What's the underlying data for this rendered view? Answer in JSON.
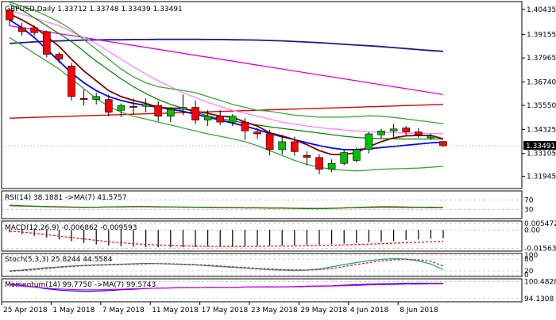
{
  "chart_data": {
    "type": "candlestick",
    "header": "GBPUSD,Daily  1.33712 1.33748 1.33439 1.33491",
    "current_price_label": "1.33491",
    "price_ticks": [
      "1.40435",
      "1.39155",
      "1.37965",
      "1.36740",
      "1.35550",
      "1.34325",
      "1.33491",
      "1.33105",
      "1.31945"
    ],
    "x_tick_labels": [
      "25 Apr 2018",
      "1 May 2018",
      "7 May 2018",
      "11 May 2018",
      "17 May 2018",
      "23 May 2018",
      "29 May 2018",
      "4 Jun 2018",
      "8 Jun 2018"
    ],
    "ylim": [
      1.314,
      1.4075
    ],
    "colors": {
      "bull": "#00c000",
      "bear": "#ff0000",
      "sma_short": "#0000ff",
      "sma_long": "#1a1a8c",
      "ema_red": "#dd0000",
      "ema_magenta": "#e000e0",
      "pink": "#ff80ff",
      "green": "#008800",
      "maroon": "#800000",
      "bollinger": "#33aa33",
      "price_bg": "#000000"
    },
    "candles": [
      {
        "o": 1.404,
        "h": 1.4045,
        "l": 1.396,
        "c": 1.399
      },
      {
        "o": 1.395,
        "h": 1.3975,
        "l": 1.391,
        "c": 1.393
      },
      {
        "o": 1.395,
        "h": 1.396,
        "l": 1.391,
        "c": 1.3925
      },
      {
        "o": 1.393,
        "h": 1.3935,
        "l": 1.38,
        "c": 1.3815
      },
      {
        "o": 1.3815,
        "h": 1.3825,
        "l": 1.377,
        "c": 1.379
      },
      {
        "o": 1.3755,
        "h": 1.377,
        "l": 1.358,
        "c": 1.36
      },
      {
        "o": 1.359,
        "h": 1.3635,
        "l": 1.3555,
        "c": 1.3585
      },
      {
        "o": 1.3585,
        "h": 1.362,
        "l": 1.356,
        "c": 1.36
      },
      {
        "o": 1.3585,
        "h": 1.361,
        "l": 1.35,
        "c": 1.352
      },
      {
        "o": 1.353,
        "h": 1.3565,
        "l": 1.3495,
        "c": 1.3555
      },
      {
        "o": 1.355,
        "h": 1.359,
        "l": 1.351,
        "c": 1.3545
      },
      {
        "o": 1.355,
        "h": 1.359,
        "l": 1.352,
        "c": 1.356
      },
      {
        "o": 1.3555,
        "h": 1.3575,
        "l": 1.3475,
        "c": 1.35
      },
      {
        "o": 1.35,
        "h": 1.3545,
        "l": 1.347,
        "c": 1.3535
      },
      {
        "o": 1.3535,
        "h": 1.361,
        "l": 1.3505,
        "c": 1.3545
      },
      {
        "o": 1.3545,
        "h": 1.358,
        "l": 1.346,
        "c": 1.348
      },
      {
        "o": 1.348,
        "h": 1.353,
        "l": 1.345,
        "c": 1.35
      },
      {
        "o": 1.35,
        "h": 1.353,
        "l": 1.3455,
        "c": 1.347
      },
      {
        "o": 1.347,
        "h": 1.351,
        "l": 1.345,
        "c": 1.35
      },
      {
        "o": 1.347,
        "h": 1.349,
        "l": 1.338,
        "c": 1.3425
      },
      {
        "o": 1.342,
        "h": 1.344,
        "l": 1.3385,
        "c": 1.341
      },
      {
        "o": 1.341,
        "h": 1.343,
        "l": 1.33,
        "c": 1.333
      },
      {
        "o": 1.333,
        "h": 1.34,
        "l": 1.3305,
        "c": 1.337
      },
      {
        "o": 1.337,
        "h": 1.3395,
        "l": 1.33,
        "c": 1.332
      },
      {
        "o": 1.33,
        "h": 1.332,
        "l": 1.325,
        "c": 1.329
      },
      {
        "o": 1.329,
        "h": 1.3305,
        "l": 1.3205,
        "c": 1.323
      },
      {
        "o": 1.323,
        "h": 1.328,
        "l": 1.3215,
        "c": 1.326
      },
      {
        "o": 1.326,
        "h": 1.333,
        "l": 1.325,
        "c": 1.3315
      },
      {
        "o": 1.3275,
        "h": 1.334,
        "l": 1.3265,
        "c": 1.333
      },
      {
        "o": 1.333,
        "h": 1.342,
        "l": 1.331,
        "c": 1.341
      },
      {
        "o": 1.3405,
        "h": 1.3435,
        "l": 1.3385,
        "c": 1.3425
      },
      {
        "o": 1.3425,
        "h": 1.346,
        "l": 1.3395,
        "c": 1.3435
      },
      {
        "o": 1.344,
        "h": 1.345,
        "l": 1.34,
        "c": 1.342
      },
      {
        "o": 1.342,
        "h": 1.344,
        "l": 1.339,
        "c": 1.3405
      },
      {
        "o": 1.339,
        "h": 1.341,
        "l": 1.338,
        "c": 1.34
      },
      {
        "o": 1.3371,
        "h": 1.3375,
        "l": 1.3344,
        "c": 1.3349
      }
    ],
    "series": [
      {
        "color": "#1a1a8c",
        "values": [
          1.387,
          1.3874,
          1.3878,
          1.3881,
          1.3883,
          1.3885,
          1.3887,
          1.3888,
          1.3889,
          1.3889,
          1.389,
          1.389,
          1.3891,
          1.3891,
          1.3891,
          1.3891,
          1.389,
          1.389,
          1.3889,
          1.3888,
          1.3887,
          1.3885,
          1.3883,
          1.388,
          1.3877,
          1.3874,
          1.387,
          1.3866,
          1.3862,
          1.3858,
          1.3854,
          1.3849,
          1.3844,
          1.3839,
          1.3834,
          1.383
        ]
      },
      {
        "color": "#dd0000",
        "values": [
          1.349,
          1.3492,
          1.3494,
          1.3496,
          1.3498,
          1.35,
          1.3502,
          1.3504,
          1.3506,
          1.3508,
          1.351,
          1.3512,
          1.3514,
          1.3516,
          1.3518,
          1.352,
          1.3522,
          1.3524,
          1.3526,
          1.3528,
          1.353,
          1.3532,
          1.3534,
          1.3536,
          1.3538,
          1.354,
          1.3542,
          1.3544,
          1.3546,
          1.3548,
          1.355,
          1.3552,
          1.3554,
          1.3556,
          1.3558,
          1.356
        ]
      },
      {
        "color": "#e000e0",
        "values": [
          1.396,
          1.395,
          1.394,
          1.393,
          1.392,
          1.391,
          1.39,
          1.389,
          1.388,
          1.387,
          1.386,
          1.385,
          1.384,
          1.383,
          1.382,
          1.381,
          1.38,
          1.379,
          1.378,
          1.377,
          1.376,
          1.375,
          1.374,
          1.373,
          1.372,
          1.371,
          1.37,
          1.369,
          1.368,
          1.367,
          1.366,
          1.365,
          1.364,
          1.363,
          1.362,
          1.361
        ]
      },
      {
        "color": "#ff80ff",
        "values": [
          1.404,
          1.402,
          1.4,
          1.398,
          1.396,
          1.393,
          1.39,
          1.387,
          1.383,
          1.379,
          1.375,
          1.3715,
          1.368,
          1.365,
          1.362,
          1.3595,
          1.357,
          1.355,
          1.353,
          1.3515,
          1.35,
          1.3485,
          1.347,
          1.346,
          1.345,
          1.3442,
          1.3435,
          1.343,
          1.3425,
          1.342,
          1.3418,
          1.3416,
          1.3414,
          1.3413,
          1.3412,
          1.3411
        ]
      },
      {
        "color": "#008800",
        "values": [
          1.407,
          1.404,
          1.4,
          1.396,
          1.392,
          1.388,
          1.383,
          1.378,
          1.3735,
          1.369,
          1.365,
          1.3615,
          1.3585,
          1.356,
          1.354,
          1.352,
          1.3502,
          1.3488,
          1.3476,
          1.3465,
          1.3455,
          1.3446,
          1.3438,
          1.343,
          1.3422,
          1.3414,
          1.3406,
          1.3398,
          1.3392,
          1.3388,
          1.3386,
          1.3385,
          1.3384,
          1.3384,
          1.3384,
          1.3384
        ]
      },
      {
        "color": "#0000ff",
        "values": [
          1.399,
          1.395,
          1.39,
          1.384,
          1.378,
          1.372,
          1.367,
          1.363,
          1.36,
          1.358,
          1.3565,
          1.3555,
          1.3545,
          1.3535,
          1.3525,
          1.351,
          1.3495,
          1.348,
          1.3465,
          1.345,
          1.3432,
          1.3412,
          1.3395,
          1.338,
          1.3365,
          1.335,
          1.3338,
          1.333,
          1.333,
          1.3335,
          1.334,
          1.3346,
          1.3352,
          1.3358,
          1.3364,
          1.3368
        ]
      },
      {
        "color": "#800000",
        "values": [
          1.402,
          1.399,
          1.3955,
          1.3905,
          1.3855,
          1.379,
          1.373,
          1.368,
          1.363,
          1.36,
          1.358,
          1.3565,
          1.3545,
          1.354,
          1.354,
          1.3525,
          1.3515,
          1.35,
          1.3495,
          1.347,
          1.345,
          1.3415,
          1.34,
          1.338,
          1.3355,
          1.3325,
          1.3305,
          1.3305,
          1.3315,
          1.3345,
          1.337,
          1.339,
          1.34,
          1.3402,
          1.3402,
          1.3385
        ]
      },
      {
        "color": "#33aa33",
        "values": [
          1.408,
          1.406,
          1.404,
          1.401,
          1.398,
          1.394,
          1.389,
          1.384,
          1.379,
          1.374,
          1.37,
          1.367,
          1.365,
          1.364,
          1.363,
          1.362,
          1.36,
          1.358,
          1.356,
          1.3545,
          1.353,
          1.3525,
          1.3515,
          1.3505,
          1.35,
          1.3495,
          1.3495,
          1.3495,
          1.3498,
          1.3502,
          1.35,
          1.3494,
          1.3486,
          1.3478,
          1.347,
          1.3462
        ]
      },
      {
        "color": "#33aa33",
        "values": [
          1.39,
          1.386,
          1.382,
          1.378,
          1.374,
          1.369,
          1.364,
          1.359,
          1.355,
          1.352,
          1.35,
          1.3485,
          1.347,
          1.3455,
          1.344,
          1.3425,
          1.341,
          1.3398,
          1.3385,
          1.337,
          1.335,
          1.3325,
          1.33,
          1.3275,
          1.3255,
          1.324,
          1.323,
          1.3225,
          1.3222,
          1.3225,
          1.323,
          1.3232,
          1.3234,
          1.3236,
          1.324,
          1.3245
        ]
      }
    ],
    "subpanels": [
      {
        "id": "rsi",
        "label": "RSI(14) 38.1881  ->MA(7) 41.5757",
        "ticks": [
          "70",
          "30"
        ],
        "tick_values": [
          70,
          30
        ],
        "range": [
          0,
          100
        ],
        "lines": [
          {
            "color": "#ff0000",
            "values": [
              46,
              45,
              44,
              43,
              42,
              41,
              40,
              40,
              41,
              41,
              42,
              42,
              41,
              41,
              41,
              40,
              40,
              39,
              39,
              38,
              38,
              37,
              37,
              36,
              35,
              35,
              36,
              37,
              38,
              39,
              40,
              40,
              39,
              39,
              38,
              38
            ]
          },
          {
            "color": "#008800",
            "values": [
              48,
              46,
              44,
              42,
              41,
              40,
              39,
              40,
              41,
              42,
              43,
              43,
              42,
              41,
              40,
              40,
              39,
              38,
              38,
              37,
              37,
              36,
              36,
              35,
              34,
              34,
              35,
              37,
              39,
              41,
              42,
              42,
              41,
              40,
              40,
              39
            ]
          }
        ]
      },
      {
        "id": "macd",
        "label": "MACD(12,26,9) -0.006862  -0.009593",
        "ticks": [
          "0.005472",
          "0.00",
          "-0.015638"
        ],
        "tick_values": [
          0.005472,
          0.0,
          -0.015638
        ],
        "range": [
          -0.0165,
          0.0062
        ],
        "histogram": [
          -0.002,
          -0.0035,
          -0.005,
          -0.0065,
          -0.008,
          -0.0095,
          -0.011,
          -0.0122,
          -0.0132,
          -0.0138,
          -0.0142,
          -0.0145,
          -0.0146,
          -0.0146,
          -0.0146,
          -0.0145,
          -0.0143,
          -0.0142,
          -0.014,
          -0.0138,
          -0.0136,
          -0.0134,
          -0.0132,
          -0.013,
          -0.0127,
          -0.0124,
          -0.012,
          -0.0115,
          -0.011,
          -0.0104,
          -0.0098,
          -0.0092,
          -0.0086,
          -0.008,
          -0.0074,
          -0.0069
        ],
        "hist_color": "#000000",
        "lines": [
          {
            "color": "#ff0000",
            "values": [
              -0.001,
              -0.0018,
              -0.0028,
              -0.004,
              -0.0052,
              -0.0064,
              -0.0076,
              -0.0088,
              -0.0099,
              -0.0108,
              -0.0116,
              -0.0122,
              -0.0127,
              -0.0131,
              -0.0134,
              -0.0136,
              -0.0138,
              -0.0139,
              -0.0139,
              -0.0139,
              -0.0138,
              -0.0137,
              -0.0136,
              -0.0135,
              -0.0133,
              -0.0131,
              -0.0129,
              -0.0126,
              -0.0123,
              -0.012,
              -0.0116,
              -0.0112,
              -0.0108,
              -0.0104,
              -0.01,
              -0.0096
            ]
          }
        ]
      },
      {
        "id": "stoch",
        "label": "Stoch(5,3,3) 25.8244  44.5584",
        "ticks": [
          "100",
          "80",
          "20",
          "0"
        ],
        "tick_values": [
          100,
          80,
          20,
          0
        ],
        "range": [
          0,
          100
        ],
        "lines": [
          {
            "color": "#00aaaa",
            "values": [
              20,
              24,
              30,
              36,
              40,
              45,
              48,
              50,
              52,
              54,
              56,
              58,
              57,
              55,
              52,
              50,
              46,
              42,
              38,
              34,
              30,
              26,
              24,
              22,
              24,
              30,
              40,
              52,
              62,
              72,
              78,
              82,
              80,
              70,
              55,
              26
            ]
          },
          {
            "color": "#ff0000",
            "values": [
              18,
              22,
              26,
              32,
              38,
              42,
              46,
              48,
              50,
              52,
              54,
              56,
              57,
              56,
              54,
              52,
              49,
              45,
              41,
              37,
              33,
              30,
              27,
              25,
              24,
              26,
              32,
              42,
              52,
              62,
              70,
              76,
              78,
              76,
              68,
              45
            ]
          }
        ]
      },
      {
        "id": "momentum",
        "label": "Momentum(14) 99.7750  ->MA(7) 99.5743",
        "ticks": [
          "100.4828",
          "94.1308"
        ],
        "tick_values": [
          100.4828,
          94.1308
        ],
        "range": [
          93.5,
          100.9
        ],
        "lines": [
          {
            "color": "#0000ff",
            "values": [
              99.5,
              99.0,
              98.4,
              97.8,
              97.3,
              97.0,
              96.8,
              96.9,
              97.1,
              97.4,
              97.6,
              97.9,
              98.0,
              98.1,
              98.2,
              98.2,
              98.3,
              98.3,
              98.3,
              98.4,
              98.4,
              98.5,
              98.5,
              98.6,
              98.7,
              98.8,
              98.9,
              99.1,
              99.3,
              99.5,
              99.6,
              99.7,
              99.8,
              99.8,
              99.8,
              99.8
            ]
          },
          {
            "color": "#e000e0",
            "values": [
              99.2,
              98.8,
              98.4,
              98.0,
              97.7,
              97.5,
              97.4,
              97.4,
              97.5,
              97.6,
              97.8,
              97.9,
              98.0,
              98.1,
              98.2,
              98.2,
              98.3,
              98.3,
              98.3,
              98.4,
              98.4,
              98.4,
              98.5,
              98.5,
              98.6,
              98.7,
              98.8,
              98.9,
              99.0,
              99.2,
              99.3,
              99.4,
              99.5,
              99.5,
              99.6,
              99.6
            ]
          }
        ]
      }
    ]
  }
}
